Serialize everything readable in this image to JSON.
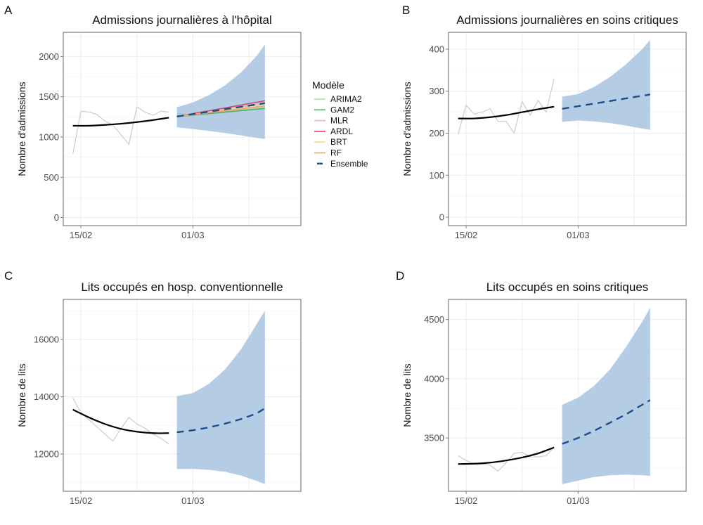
{
  "chart_data": [
    {
      "id": "A",
      "type": "line",
      "letter": "A",
      "title": "Admissions journalières à l'hôpital",
      "xlabel": "",
      "ylabel": "Nombre d'admissions",
      "x_unit": "days since 15/02",
      "xlim": [
        -2.2,
        27.5
      ],
      "ylim": [
        -100,
        2300
      ],
      "x_ticks": [
        {
          "value": 0,
          "label": "15/02"
        },
        {
          "value": 14,
          "label": "01/03"
        }
      ],
      "x_minor": [
        7,
        21
      ],
      "y_ticks": [
        0,
        500,
        1000,
        1500,
        2000
      ],
      "observed": {
        "x": [
          -1,
          0,
          1,
          2,
          3,
          4,
          5,
          6,
          7,
          8,
          9,
          10,
          11
        ],
        "y": [
          790,
          1320,
          1310,
          1280,
          1200,
          1150,
          1030,
          910,
          1375,
          1310,
          1270,
          1320,
          1310
        ]
      },
      "smoothed": {
        "x": [
          -1,
          1,
          3,
          5,
          7,
          9,
          11
        ],
        "y": [
          1140,
          1140,
          1150,
          1165,
          1185,
          1210,
          1240
        ]
      },
      "forecast_band": {
        "x": [
          12,
          14,
          16,
          18,
          20,
          22,
          23
        ],
        "lower": [
          1120,
          1100,
          1075,
          1050,
          1020,
          990,
          975
        ],
        "upper": [
          1370,
          1430,
          1520,
          1640,
          1800,
          2010,
          2150
        ]
      },
      "ensemble": {
        "x": [
          12,
          23
        ],
        "y": [
          1255,
          1420
        ]
      },
      "models": [
        {
          "name": "ARIMA2",
          "color": "#b8dbb0",
          "x": [
            12,
            23
          ],
          "y": [
            1255,
            1375
          ]
        },
        {
          "name": "GAM2",
          "color": "#4daf6a",
          "x": [
            12,
            23
          ],
          "y": [
            1255,
            1355
          ]
        },
        {
          "name": "MLR",
          "color": "#e8b4c8",
          "x": [
            12,
            23
          ],
          "y": [
            1255,
            1425
          ]
        },
        {
          "name": "ARDL",
          "color": "#d6456e",
          "x": [
            12,
            23
          ],
          "y": [
            1255,
            1450
          ]
        },
        {
          "name": "BRT",
          "color": "#ecd9a0",
          "x": [
            12,
            23
          ],
          "y": [
            1255,
            1400
          ]
        },
        {
          "name": "RF",
          "color": "#f0a660",
          "x": [
            12,
            23
          ],
          "y": [
            1255,
            1385
          ]
        }
      ]
    },
    {
      "id": "B",
      "type": "line",
      "letter": "B",
      "title": "Admissions journalières en soins critiques",
      "xlabel": "",
      "ylabel": "Nombre d'admissions",
      "x_unit": "days since 15/02",
      "xlim": [
        -2.2,
        27.5
      ],
      "ylim": [
        -20,
        440
      ],
      "x_ticks": [
        {
          "value": 0,
          "label": "15/02"
        },
        {
          "value": 14,
          "label": "01/03"
        }
      ],
      "x_minor": [
        7,
        21
      ],
      "y_ticks": [
        0,
        100,
        200,
        300,
        400
      ],
      "observed": {
        "x": [
          -1,
          0,
          1,
          2,
          3,
          4,
          5,
          6,
          7,
          8,
          9,
          10,
          11
        ],
        "y": [
          197,
          267,
          245,
          250,
          258,
          228,
          228,
          200,
          275,
          243,
          278,
          250,
          330
        ]
      },
      "smoothed": {
        "x": [
          -1,
          1,
          3,
          5,
          7,
          9,
          11
        ],
        "y": [
          235,
          235,
          238,
          243,
          250,
          257,
          263
        ]
      },
      "forecast_band": {
        "x": [
          12,
          14,
          16,
          18,
          20,
          22,
          23
        ],
        "lower": [
          227,
          230,
          228,
          224,
          218,
          211,
          208
        ],
        "upper": [
          287,
          293,
          310,
          334,
          364,
          400,
          422
        ]
      },
      "ensemble": {
        "x": [
          12,
          23
        ],
        "y": [
          258,
          292
        ]
      },
      "models": []
    },
    {
      "id": "C",
      "type": "line",
      "letter": "C",
      "title": "Lits occupés en hosp. conventionnelle",
      "xlabel": "",
      "ylabel": "Nombre de lits",
      "x_unit": "days since 15/02",
      "xlim": [
        -2.2,
        27.5
      ],
      "ylim": [
        10700,
        17400
      ],
      "x_ticks": [
        {
          "value": 0,
          "label": "15/02"
        },
        {
          "value": 14,
          "label": "01/03"
        }
      ],
      "x_minor": [
        7,
        21
      ],
      "y_ticks": [
        12000,
        14000,
        16000
      ],
      "observed": {
        "x": [
          -1,
          0,
          1,
          2,
          3,
          4,
          5,
          6,
          7,
          8,
          9,
          10,
          11
        ],
        "y": [
          13950,
          13450,
          13200,
          12950,
          12700,
          12450,
          12880,
          13280,
          13050,
          12900,
          12700,
          12550,
          12350
        ]
      },
      "smoothed": {
        "x": [
          -1,
          1,
          3,
          5,
          7,
          9,
          11
        ],
        "y": [
          13550,
          13280,
          13050,
          12880,
          12780,
          12730,
          12730
        ]
      },
      "forecast_band": {
        "x": [
          12,
          14,
          16,
          18,
          20,
          22,
          23
        ],
        "lower": [
          11480,
          11480,
          11450,
          11380,
          11250,
          11060,
          10950
        ],
        "upper": [
          14020,
          14130,
          14450,
          14950,
          15650,
          16550,
          17000
        ]
      },
      "ensemble": {
        "x": [
          12,
          14,
          16,
          18,
          20,
          22,
          23
        ],
        "y": [
          12760,
          12830,
          12930,
          13060,
          13220,
          13420,
          13600
        ]
      },
      "models": []
    },
    {
      "id": "D",
      "type": "line",
      "letter": "D",
      "title": "Lits occupés en soins critiques",
      "xlabel": "",
      "ylabel": "Nombre de lits",
      "x_unit": "days since 15/02",
      "xlim": [
        -2.2,
        27.5
      ],
      "ylim": [
        3050,
        4670
      ],
      "x_ticks": [
        {
          "value": 0,
          "label": "15/02"
        },
        {
          "value": 14,
          "label": "01/03"
        }
      ],
      "x_minor": [
        7,
        21
      ],
      "y_ticks": [
        3500,
        4000,
        4500
      ],
      "observed": {
        "x": [
          -1,
          0,
          1,
          2,
          3,
          4,
          5,
          6,
          7,
          8,
          9,
          10,
          11
        ],
        "y": [
          3350,
          3310,
          3280,
          3280,
          3270,
          3220,
          3290,
          3370,
          3380,
          3340,
          3340,
          3350,
          3420
        ]
      },
      "smoothed": {
        "x": [
          -1,
          1,
          3,
          5,
          7,
          9,
          11
        ],
        "y": [
          3280,
          3283,
          3292,
          3310,
          3335,
          3370,
          3420
        ]
      },
      "forecast_band": {
        "x": [
          12,
          14,
          16,
          18,
          20,
          22,
          23
        ],
        "lower": [
          3110,
          3140,
          3170,
          3185,
          3190,
          3185,
          3180
        ],
        "upper": [
          3780,
          3840,
          3940,
          4080,
          4270,
          4480,
          4600
        ]
      },
      "ensemble": {
        "x": [
          12,
          14,
          16,
          18,
          20,
          22,
          23
        ],
        "y": [
          3450,
          3500,
          3560,
          3630,
          3700,
          3780,
          3820
        ]
      },
      "models": []
    }
  ],
  "legend": {
    "title": "Modèle",
    "placement": "right of panel A",
    "items": [
      {
        "name": "ARIMA2",
        "color": "#b8dbb0",
        "dashed": false
      },
      {
        "name": "GAM2",
        "color": "#4daf6a",
        "dashed": false
      },
      {
        "name": "MLR",
        "color": "#e8b4c8",
        "dashed": false
      },
      {
        "name": "ARDL",
        "color": "#d6456e",
        "dashed": false
      },
      {
        "name": "BRT",
        "color": "#ecd9a0",
        "dashed": false
      },
      {
        "name": "RF",
        "color": "#f0a660",
        "dashed": false
      },
      {
        "name": "Ensemble",
        "color": "#1a4f8c",
        "dashed": true
      }
    ]
  },
  "colors": {
    "band": "#a8c3e0",
    "ensemble": "#1a4f8c",
    "observed": "#cfcfcf",
    "smoothed": "#000000"
  }
}
